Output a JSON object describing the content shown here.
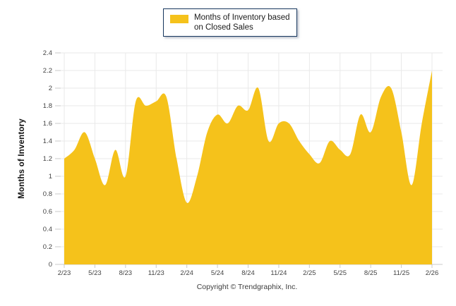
{
  "page": {
    "background_color": "#ffffff"
  },
  "legend": {
    "label_line1": "Months of Inventory based",
    "label_line2": "on Closed Sales",
    "swatch_color": "#F5C21B",
    "border_color": "#17375E"
  },
  "y_axis": {
    "title": "Months of Inventory",
    "min": 0,
    "max": 2.4,
    "step": 0.2,
    "tick_labels": [
      "0",
      "0.2",
      "0.4",
      "0.6",
      "0.8",
      "1",
      "1.2",
      "1.4",
      "1.6",
      "1.8",
      "2",
      "2.2",
      "2.4"
    ]
  },
  "x_axis": {
    "tick_labels": [
      "2/23",
      "5/23",
      "8/23",
      "11/23",
      "2/24",
      "5/24",
      "8/24",
      "11/24",
      "2/25",
      "5/25",
      "8/25",
      "11/25",
      "2/26"
    ]
  },
  "footer": {
    "copyright": "Copyright © Trendgraphix, Inc."
  },
  "chart_data": {
    "type": "area",
    "title": "",
    "series_name": "Months of Inventory based on Closed Sales",
    "x": [
      "2/23",
      "3/23",
      "4/23",
      "5/23",
      "6/23",
      "7/23",
      "8/23",
      "9/23",
      "10/23",
      "11/23",
      "12/23",
      "1/24",
      "2/24",
      "3/24",
      "4/24",
      "5/24",
      "6/24",
      "7/24",
      "8/24",
      "9/24",
      "10/24",
      "11/24",
      "12/24",
      "1/25",
      "2/25",
      "3/25",
      "4/25",
      "5/25",
      "6/25",
      "7/25",
      "8/25",
      "9/25",
      "10/25",
      "11/25",
      "12/25",
      "1/26",
      "2/26"
    ],
    "values": [
      1.2,
      1.3,
      1.5,
      1.2,
      0.9,
      1.3,
      1.0,
      1.85,
      1.8,
      1.85,
      1.9,
      1.2,
      0.7,
      1.0,
      1.5,
      1.7,
      1.6,
      1.8,
      1.75,
      2.0,
      1.4,
      1.6,
      1.6,
      1.4,
      1.25,
      1.15,
      1.4,
      1.3,
      1.25,
      1.7,
      1.5,
      1.9,
      2.0,
      1.5,
      0.9,
      1.6,
      2.2
    ],
    "xlabel": "",
    "ylabel": "Months of Inventory",
    "ylim": [
      0,
      2.4
    ],
    "x_tick_every": 3,
    "grid": true,
    "legend_position": "top-center",
    "fill_color": "#F5C21B",
    "gridline_color": "#e9e9e9",
    "axis_line_color": "#c9c9c9"
  }
}
